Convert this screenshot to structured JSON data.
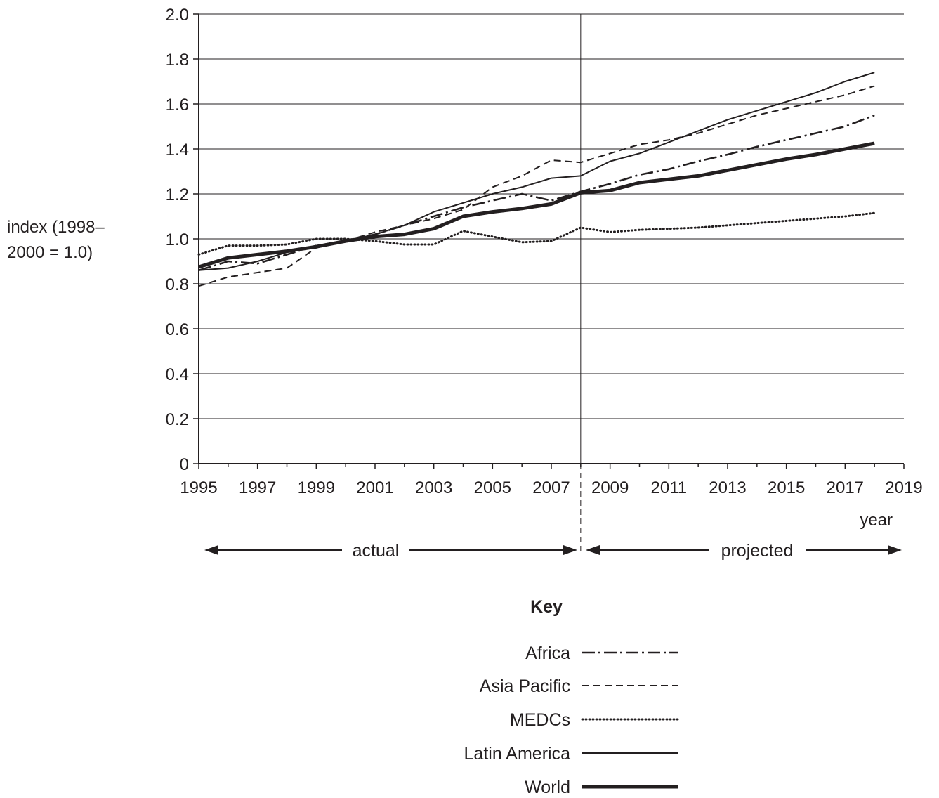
{
  "chart_data": {
    "type": "line",
    "title": "",
    "ylabel_lines": [
      "index (1998–",
      "2000 = 1.0)"
    ],
    "xlabel": "year",
    "xlim": [
      1995,
      2019
    ],
    "ylim": [
      0,
      2.0
    ],
    "x_ticks": [
      1995,
      1997,
      1999,
      2001,
      2003,
      2005,
      2007,
      2009,
      2011,
      2013,
      2015,
      2017,
      2019
    ],
    "y_ticks": [
      0,
      0.2,
      0.4,
      0.6,
      0.8,
      1.0,
      1.2,
      1.4,
      1.6,
      1.8,
      2.0
    ],
    "y_tick_labels": [
      "0",
      "0.2",
      "0.4",
      "0.6",
      "0.8",
      "1.0",
      "1.2",
      "1.4",
      "1.6",
      "1.8",
      "2.0"
    ],
    "grid": "horizontal",
    "divider_year": 2008,
    "period_labels": {
      "actual": "actual",
      "projected": "projected"
    },
    "legend": {
      "title": "Key",
      "placement": "bottom-center"
    },
    "series": [
      {
        "name": "Africa",
        "style": "dash-dot",
        "points": [
          [
            1995,
            0.86
          ],
          [
            1996,
            0.9
          ],
          [
            1997,
            0.89
          ],
          [
            1998,
            0.93
          ],
          [
            1999,
            0.97
          ],
          [
            2000,
            0.99
          ],
          [
            2001,
            1.02
          ],
          [
            2002,
            1.06
          ],
          [
            2003,
            1.1
          ],
          [
            2004,
            1.14
          ],
          [
            2005,
            1.17
          ],
          [
            2006,
            1.2
          ],
          [
            2007,
            1.17
          ],
          [
            2008,
            1.21
          ],
          [
            2009,
            1.245
          ],
          [
            2010,
            1.285
          ],
          [
            2011,
            1.31
          ],
          [
            2012,
            1.345
          ],
          [
            2013,
            1.375
          ],
          [
            2014,
            1.41
          ],
          [
            2015,
            1.44
          ],
          [
            2016,
            1.47
          ],
          [
            2017,
            1.5
          ],
          [
            2018,
            1.55
          ]
        ]
      },
      {
        "name": "Asia Pacific",
        "style": "dashed",
        "points": [
          [
            1995,
            0.79
          ],
          [
            1996,
            0.83
          ],
          [
            1997,
            0.85
          ],
          [
            1998,
            0.87
          ],
          [
            1999,
            0.96
          ],
          [
            2000,
            0.99
          ],
          [
            2001,
            1.03
          ],
          [
            2002,
            1.06
          ],
          [
            2003,
            1.09
          ],
          [
            2004,
            1.13
          ],
          [
            2005,
            1.23
          ],
          [
            2006,
            1.28
          ],
          [
            2007,
            1.35
          ],
          [
            2008,
            1.34
          ],
          [
            2009,
            1.38
          ],
          [
            2010,
            1.42
          ],
          [
            2011,
            1.44
          ],
          [
            2012,
            1.47
          ],
          [
            2013,
            1.51
          ],
          [
            2014,
            1.55
          ],
          [
            2015,
            1.58
          ],
          [
            2016,
            1.61
          ],
          [
            2017,
            1.64
          ],
          [
            2018,
            1.68
          ]
        ]
      },
      {
        "name": "MEDCs",
        "style": "dotted",
        "points": [
          [
            1995,
            0.93
          ],
          [
            1996,
            0.97
          ],
          [
            1997,
            0.97
          ],
          [
            1998,
            0.975
          ],
          [
            1999,
            1.0
          ],
          [
            2000,
            1.0
          ],
          [
            2001,
            0.99
          ],
          [
            2002,
            0.975
          ],
          [
            2003,
            0.975
          ],
          [
            2004,
            1.035
          ],
          [
            2005,
            1.01
          ],
          [
            2006,
            0.985
          ],
          [
            2007,
            0.99
          ],
          [
            2008,
            1.05
          ],
          [
            2009,
            1.03
          ],
          [
            2010,
            1.04
          ],
          [
            2011,
            1.045
          ],
          [
            2012,
            1.05
          ],
          [
            2013,
            1.06
          ],
          [
            2014,
            1.07
          ],
          [
            2015,
            1.08
          ],
          [
            2016,
            1.09
          ],
          [
            2017,
            1.1
          ],
          [
            2018,
            1.115
          ]
        ]
      },
      {
        "name": "Latin America",
        "style": "solid-thin",
        "points": [
          [
            1995,
            0.86
          ],
          [
            1996,
            0.87
          ],
          [
            1997,
            0.9
          ],
          [
            1998,
            0.94
          ],
          [
            1999,
            0.97
          ],
          [
            2000,
            0.99
          ],
          [
            2001,
            1.02
          ],
          [
            2002,
            1.06
          ],
          [
            2003,
            1.12
          ],
          [
            2004,
            1.16
          ],
          [
            2005,
            1.2
          ],
          [
            2006,
            1.23
          ],
          [
            2007,
            1.27
          ],
          [
            2008,
            1.28
          ],
          [
            2009,
            1.345
          ],
          [
            2010,
            1.38
          ],
          [
            2011,
            1.43
          ],
          [
            2012,
            1.48
          ],
          [
            2013,
            1.53
          ],
          [
            2014,
            1.57
          ],
          [
            2015,
            1.61
          ],
          [
            2016,
            1.65
          ],
          [
            2017,
            1.7
          ],
          [
            2018,
            1.74
          ]
        ]
      },
      {
        "name": "World",
        "style": "solid-thick",
        "points": [
          [
            1995,
            0.875
          ],
          [
            1996,
            0.915
          ],
          [
            1997,
            0.93
          ],
          [
            1998,
            0.945
          ],
          [
            1999,
            0.965
          ],
          [
            2000,
            0.99
          ],
          [
            2001,
            1.01
          ],
          [
            2002,
            1.02
          ],
          [
            2003,
            1.045
          ],
          [
            2004,
            1.1
          ],
          [
            2005,
            1.12
          ],
          [
            2006,
            1.135
          ],
          [
            2007,
            1.155
          ],
          [
            2008,
            1.205
          ],
          [
            2009,
            1.215
          ],
          [
            2010,
            1.25
          ],
          [
            2011,
            1.265
          ],
          [
            2012,
            1.28
          ],
          [
            2013,
            1.305
          ],
          [
            2014,
            1.33
          ],
          [
            2015,
            1.355
          ],
          [
            2016,
            1.375
          ],
          [
            2017,
            1.4
          ],
          [
            2018,
            1.425
          ]
        ]
      }
    ]
  }
}
